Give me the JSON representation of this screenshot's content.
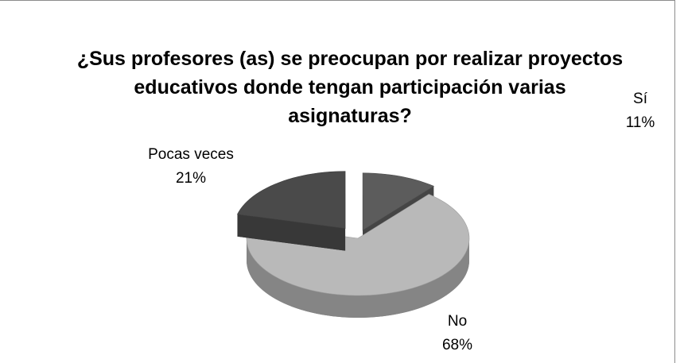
{
  "chart_data": {
    "type": "pie3d",
    "title": "¿Sus profesores (as) se preocupan por realizar proyectos educativos donde tengan participación varias asignaturas?",
    "categories": [
      "Sí",
      "No",
      "Pocas veces"
    ],
    "values": [
      11,
      68,
      21
    ],
    "value_labels": [
      "11%",
      "68%",
      "21%"
    ],
    "colors": [
      "#5c5c5c",
      "#b9b9b9",
      "#4a4a4a"
    ],
    "legend": false
  }
}
